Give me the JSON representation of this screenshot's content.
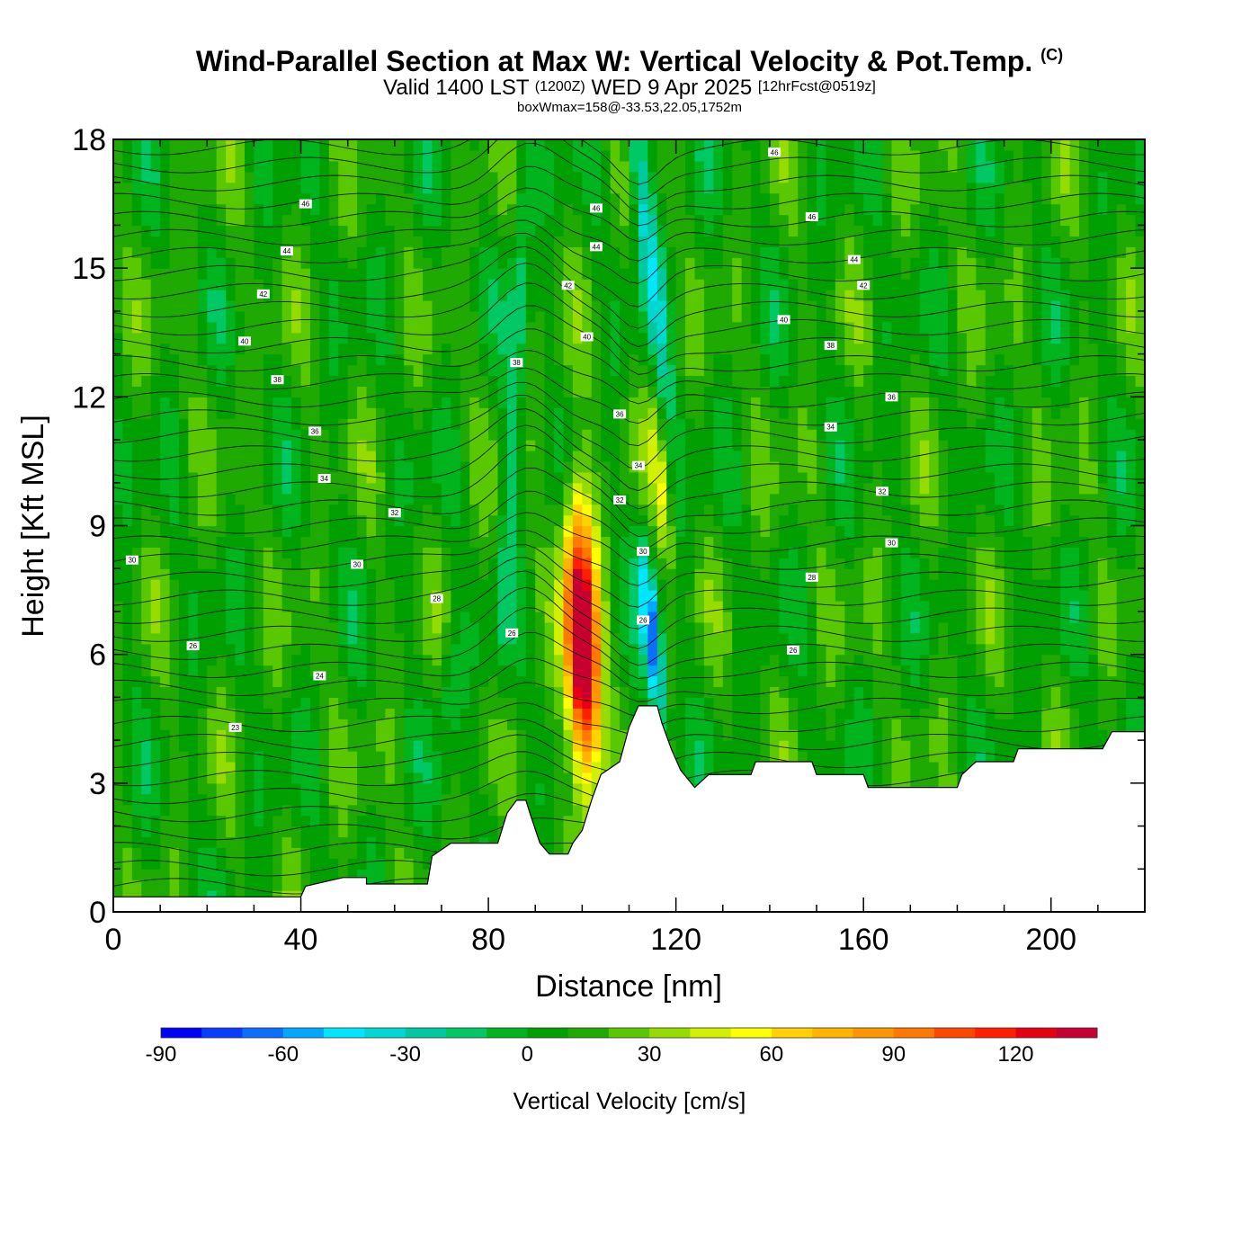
{
  "header": {
    "title": "Wind-Parallel Section at Max W: Vertical Velocity & Pot.Temp.",
    "copyright": "(C)",
    "valid_prefix": "Valid 1400 LST",
    "valid_utc": "(1200Z)",
    "valid_date": "WED 9 Apr 2025",
    "forecast": "[12hrFcst@0519z]",
    "box_info": "boxWmax=158@-33.53,22.05,1752m"
  },
  "chart_data": {
    "type": "heatmap",
    "xlabel": "Distance [nm]",
    "ylabel": "Height [Kft MSL]",
    "xlim": [
      0,
      220
    ],
    "ylim": [
      0,
      18
    ],
    "xticks": [
      0,
      40,
      80,
      120,
      160,
      200
    ],
    "yticks": [
      0,
      3,
      6,
      9,
      12,
      15,
      18
    ],
    "colorbar": {
      "title": "Vertical Velocity [cm/s]",
      "min": -90,
      "max": 140,
      "step": 10,
      "tick_values": [
        -90,
        -60,
        -30,
        0,
        30,
        60,
        90,
        120
      ],
      "colors": [
        "#0000ff",
        "#0a3cff",
        "#0a6eff",
        "#00a8ff",
        "#00e6ff",
        "#00d8d2",
        "#00c8a0",
        "#00c864",
        "#00b41e",
        "#00a000",
        "#1eaa00",
        "#5ac800",
        "#96dc00",
        "#d2f000",
        "#ffff00",
        "#ffd200",
        "#ffb400",
        "#ff9600",
        "#ff7800",
        "#ff4600",
        "#ff1e00",
        "#e60014",
        "#c80032"
      ]
    },
    "background_w": 10,
    "updraft_cores": [
      {
        "x": 100,
        "y": 6.2,
        "w": 158
      },
      {
        "x": 117,
        "y": 9.8,
        "w": 35
      }
    ],
    "downdraft_cores": [
      {
        "x": 115,
        "y": 6.3,
        "w": -75
      },
      {
        "x": 113,
        "y": 16.5,
        "w": -45
      },
      {
        "x": 86,
        "y": 13,
        "w": -28
      },
      {
        "x": 72,
        "y": 5.3,
        "w": -22
      }
    ],
    "terrain_kft": [
      [
        0,
        0.35
      ],
      [
        40,
        0.35
      ],
      [
        41,
        0.6
      ],
      [
        49,
        0.8
      ],
      [
        54,
        0.8
      ],
      [
        54,
        0.65
      ],
      [
        67,
        0.65
      ],
      [
        68,
        1.3
      ],
      [
        72,
        1.6
      ],
      [
        82,
        1.6
      ],
      [
        84,
        2.3
      ],
      [
        86,
        2.6
      ],
      [
        88,
        2.6
      ],
      [
        89,
        2.25
      ],
      [
        91,
        1.6
      ],
      [
        93,
        1.35
      ],
      [
        97,
        1.35
      ],
      [
        98,
        1.6
      ],
      [
        100,
        1.9
      ],
      [
        102,
        2.6
      ],
      [
        104,
        3.2
      ],
      [
        108,
        3.5
      ],
      [
        110,
        4.3
      ],
      [
        112,
        4.8
      ],
      [
        116,
        4.8
      ],
      [
        117,
        4.4
      ],
      [
        119,
        3.8
      ],
      [
        121,
        3.3
      ],
      [
        124,
        2.9
      ],
      [
        127,
        3.2
      ],
      [
        136,
        3.2
      ],
      [
        137,
        3.5
      ],
      [
        149,
        3.5
      ],
      [
        150,
        3.2
      ],
      [
        160,
        3.2
      ],
      [
        161,
        2.9
      ],
      [
        180,
        2.9
      ],
      [
        181,
        3.2
      ],
      [
        184,
        3.5
      ],
      [
        192,
        3.5
      ],
      [
        193,
        3.8
      ],
      [
        211,
        3.8
      ],
      [
        213,
        4.2
      ],
      [
        220,
        4.2
      ]
    ],
    "theta_labels": [
      {
        "t": "30",
        "x": 4,
        "y": 8.2
      },
      {
        "t": "30",
        "x": 52,
        "y": 8.1
      },
      {
        "t": "30",
        "x": 166,
        "y": 8.6
      },
      {
        "t": "26",
        "x": 17,
        "y": 6.2
      },
      {
        "t": "24",
        "x": 44,
        "y": 5.5
      },
      {
        "t": "23",
        "x": 26,
        "y": 4.3
      },
      {
        "t": "26",
        "x": 145,
        "y": 6.1
      },
      {
        "t": "28",
        "x": 69,
        "y": 7.3
      },
      {
        "t": "28",
        "x": 149,
        "y": 7.8
      },
      {
        "t": "26",
        "x": 85,
        "y": 6.5
      },
      {
        "t": "26",
        "x": 113,
        "y": 6.8
      },
      {
        "t": "30",
        "x": 113,
        "y": 8.4
      },
      {
        "t": "32",
        "x": 60,
        "y": 9.3
      },
      {
        "t": "32",
        "x": 108,
        "y": 9.6
      },
      {
        "t": "32",
        "x": 164,
        "y": 9.8
      },
      {
        "t": "34",
        "x": 45,
        "y": 10.1
      },
      {
        "t": "34",
        "x": 112,
        "y": 10.4
      },
      {
        "t": "34",
        "x": 153,
        "y": 11.3
      },
      {
        "t": "36",
        "x": 43,
        "y": 11.2
      },
      {
        "t": "36",
        "x": 108,
        "y": 11.6
      },
      {
        "t": "36",
        "x": 166,
        "y": 12.0
      },
      {
        "t": "38",
        "x": 35,
        "y": 12.4
      },
      {
        "t": "38",
        "x": 86,
        "y": 12.8
      },
      {
        "t": "38",
        "x": 153,
        "y": 13.2
      },
      {
        "t": "40",
        "x": 28,
        "y": 13.3
      },
      {
        "t": "40",
        "x": 101,
        "y": 13.4
      },
      {
        "t": "40",
        "x": 143,
        "y": 13.8
      },
      {
        "t": "42",
        "x": 32,
        "y": 14.4
      },
      {
        "t": "42",
        "x": 97,
        "y": 14.6
      },
      {
        "t": "42",
        "x": 160,
        "y": 14.6
      },
      {
        "t": "44",
        "x": 37,
        "y": 15.4
      },
      {
        "t": "44",
        "x": 103,
        "y": 15.5
      },
      {
        "t": "44",
        "x": 158,
        "y": 15.2
      },
      {
        "t": "46",
        "x": 41,
        "y": 16.5
      },
      {
        "t": "46",
        "x": 103,
        "y": 16.4
      },
      {
        "t": "46",
        "x": 149,
        "y": 16.2
      },
      {
        "t": "46",
        "x": 141,
        "y": 17.7
      }
    ]
  }
}
